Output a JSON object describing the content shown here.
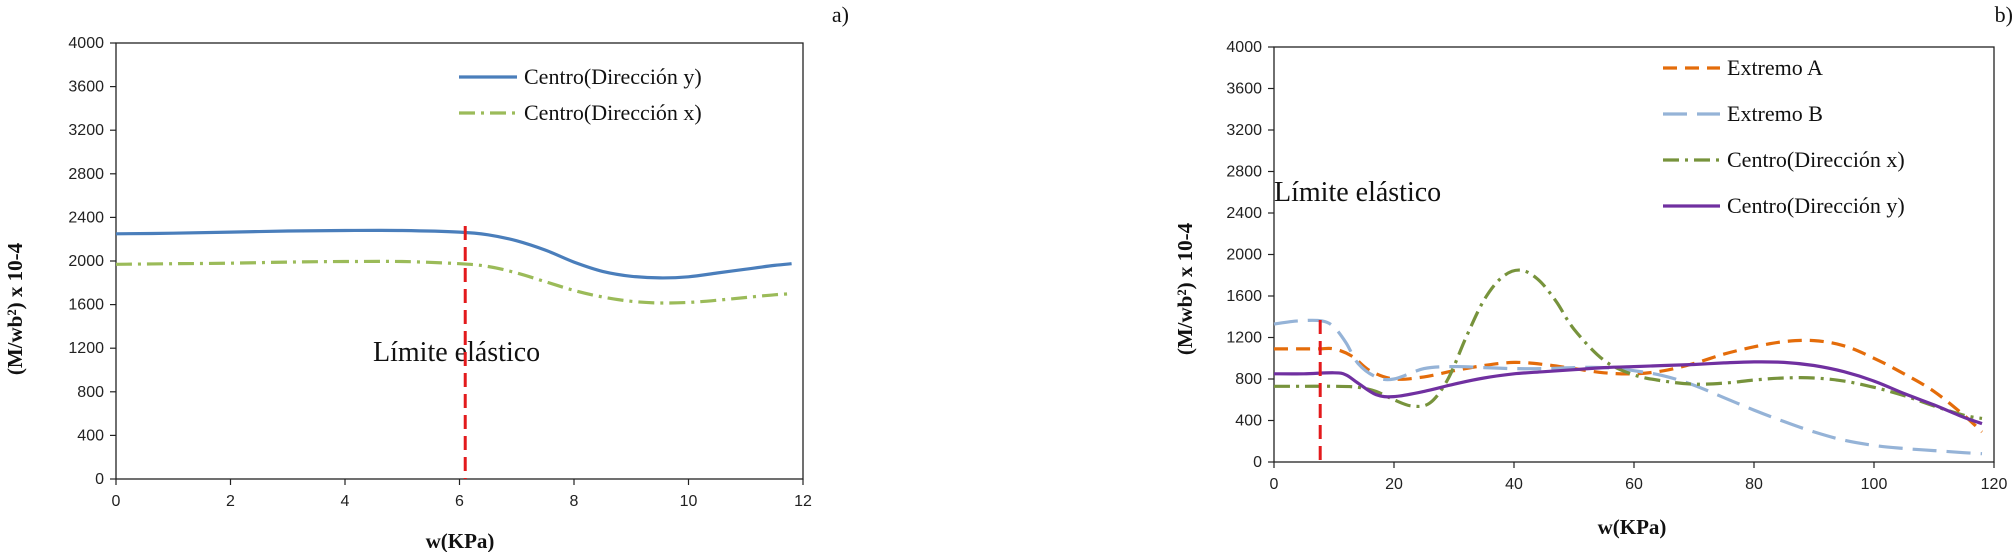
{
  "chart_data": [
    {
      "type": "line",
      "panel_label": "a)",
      "xlabel": "w(KPa)",
      "ylabel": "(M/wb²) x 10-4",
      "xlim": [
        0,
        12
      ],
      "ylim": [
        0,
        4000
      ],
      "xticks": [
        "0",
        "2",
        "4",
        "6",
        "8",
        "10",
        "12"
      ],
      "yticks": [
        "0",
        "400",
        "800",
        "1200",
        "1600",
        "2000",
        "2400",
        "2800",
        "3200",
        "3600",
        "4000"
      ],
      "legend_position": "top-right",
      "annotation": "Límite elástico",
      "elastic_limit_x": 6.1,
      "series": [
        {
          "name": "Centro(Dirección y)",
          "color": "#4a7ebb",
          "dash": "solid",
          "x": [
            0,
            1,
            2,
            3,
            4,
            5,
            6,
            6.5,
            7,
            7.5,
            8,
            8.5,
            9,
            9.5,
            10,
            10.5,
            11,
            11.5,
            11.8
          ],
          "y": [
            2250,
            2255,
            2265,
            2275,
            2280,
            2280,
            2265,
            2240,
            2185,
            2100,
            1990,
            1905,
            1860,
            1845,
            1855,
            1890,
            1925,
            1960,
            1975
          ]
        },
        {
          "name": "Centro(Dirección x)",
          "color": "#9bbb59",
          "dash": "dashdot",
          "x": [
            0,
            1,
            2,
            3,
            4,
            5,
            6,
            6.5,
            7,
            7.5,
            8,
            8.5,
            9,
            9.5,
            10,
            10.5,
            11,
            11.5,
            11.8
          ],
          "y": [
            1970,
            1975,
            1980,
            1990,
            1995,
            1995,
            1975,
            1950,
            1890,
            1810,
            1730,
            1670,
            1630,
            1615,
            1620,
            1640,
            1665,
            1690,
            1700
          ]
        }
      ]
    },
    {
      "type": "line",
      "panel_label": "b)",
      "xlabel": "w(KPa)",
      "ylabel": "(M/wb²) x 10-4",
      "xlim": [
        0,
        120
      ],
      "ylim": [
        0,
        4000
      ],
      "xticks": [
        "0",
        "20",
        "40",
        "60",
        "80",
        "100",
        "120"
      ],
      "yticks": [
        "0",
        "400",
        "800",
        "1200",
        "1600",
        "2000",
        "2400",
        "2800",
        "3200",
        "3600",
        "4000"
      ],
      "legend_position": "top-right",
      "annotation": "Límite elástico",
      "elastic_limit_x": 7.7,
      "series": [
        {
          "name": "Extremo  A",
          "color": "#e46c0a",
          "dash": "dash",
          "x": [
            0,
            7,
            10,
            13,
            16,
            20,
            25,
            30,
            35,
            40,
            45,
            50,
            55,
            60,
            65,
            70,
            75,
            80,
            85,
            90,
            95,
            100,
            105,
            110,
            115,
            118
          ],
          "y": [
            1090,
            1090,
            1090,
            1020,
            880,
            800,
            820,
            880,
            930,
            960,
            940,
            900,
            860,
            850,
            880,
            950,
            1040,
            1110,
            1160,
            1170,
            1120,
            1000,
            850,
            680,
            450,
            290
          ]
        },
        {
          "name": "Extremo B",
          "color": "#95b3d7",
          "dash": "longdash",
          "x": [
            0,
            4,
            8,
            10,
            12,
            14,
            17,
            20,
            25,
            30,
            35,
            40,
            45,
            50,
            55,
            60,
            65,
            70,
            75,
            80,
            85,
            90,
            95,
            100,
            105,
            110,
            115,
            118
          ],
          "y": [
            1330,
            1360,
            1360,
            1300,
            1150,
            950,
            820,
            800,
            900,
            920,
            910,
            900,
            900,
            910,
            910,
            880,
            830,
            740,
            620,
            500,
            390,
            290,
            210,
            160,
            130,
            110,
            90,
            80
          ]
        },
        {
          "name": "Centro(Dirección x)",
          "color": "#77933c",
          "dash": "dashdot",
          "x": [
            0,
            5,
            10,
            14,
            17,
            20,
            23,
            26,
            29,
            32,
            35,
            38,
            41,
            44,
            47,
            50,
            55,
            60,
            65,
            70,
            75,
            80,
            85,
            90,
            95,
            100,
            105,
            110,
            115,
            118
          ],
          "y": [
            730,
            730,
            730,
            720,
            680,
            600,
            540,
            570,
            800,
            1200,
            1560,
            1780,
            1850,
            1760,
            1550,
            1280,
            980,
            840,
            780,
            750,
            760,
            790,
            810,
            810,
            780,
            720,
            640,
            540,
            450,
            420
          ]
        },
        {
          "name": "Centro(Dirección y)",
          "color": "#7030a0",
          "dash": "solid",
          "x": [
            0,
            5,
            10,
            12,
            14,
            17,
            20,
            25,
            30,
            35,
            40,
            45,
            50,
            55,
            60,
            65,
            70,
            75,
            80,
            85,
            90,
            95,
            100,
            105,
            110,
            115,
            118
          ],
          "y": [
            850,
            850,
            860,
            840,
            760,
            650,
            630,
            680,
            750,
            810,
            850,
            870,
            890,
            910,
            920,
            930,
            940,
            955,
            965,
            960,
            930,
            870,
            780,
            660,
            550,
            430,
            370
          ]
        }
      ]
    }
  ],
  "refline_color": "#e31a1c"
}
